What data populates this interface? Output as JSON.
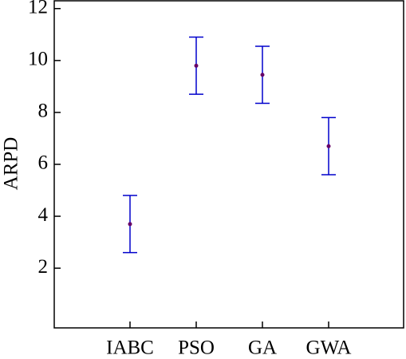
{
  "chart_data": {
    "type": "errorbar",
    "ylabel": "ARPD",
    "categories": [
      "IABC",
      "PSO",
      "GA",
      "GWA"
    ],
    "values": [
      3.7,
      9.8,
      9.45,
      6.7
    ],
    "errors": [
      1.1,
      1.1,
      1.1,
      1.1
    ],
    "color": "#0000cc",
    "marker_color": "#660066",
    "ylim": [
      -0.3,
      12.3
    ],
    "yticks": [
      2,
      4,
      6,
      8,
      10,
      12
    ]
  }
}
